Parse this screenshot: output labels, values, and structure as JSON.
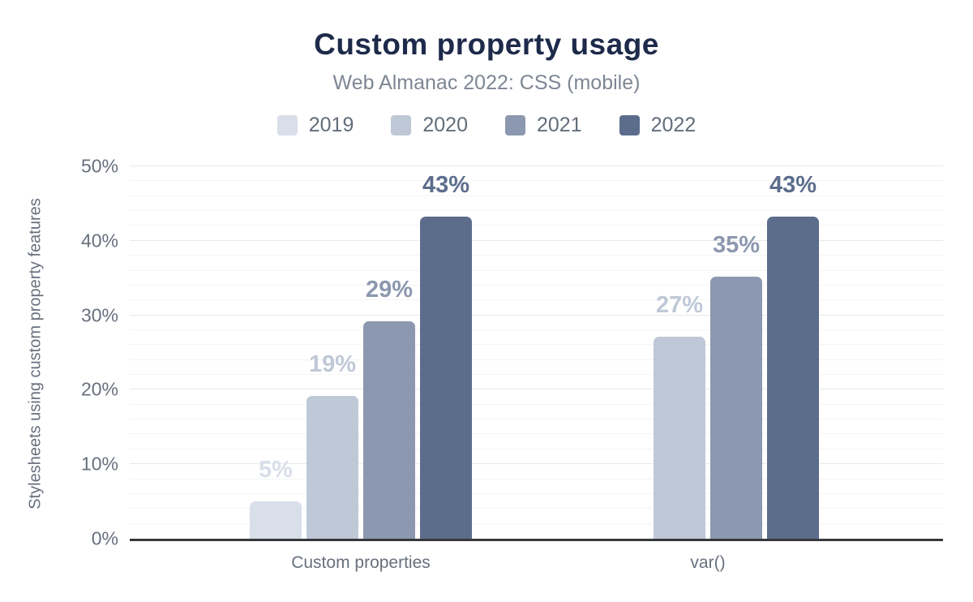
{
  "chart_data": {
    "type": "bar",
    "title": "Custom property usage",
    "subtitle": "Web Almanac 2022: CSS (mobile)",
    "categories": [
      "Custom properties",
      "var()"
    ],
    "series": [
      {
        "name": "2019",
        "color": "#d9dfe9",
        "values": [
          5,
          null
        ]
      },
      {
        "name": "2020",
        "color": "#bfc8d6",
        "values": [
          19,
          27
        ]
      },
      {
        "name": "2021",
        "color": "#8c98af",
        "values": [
          29,
          35
        ]
      },
      {
        "name": "2022",
        "color": "#5c6d8c",
        "values": [
          43,
          43
        ]
      }
    ],
    "data_labels": [
      "5%",
      "19%",
      "29%",
      "43%",
      "27%",
      "35%",
      "43%"
    ],
    "ylabel": "Stylesheets using custom property features",
    "xlabel": "",
    "ylim": [
      0,
      50
    ],
    "yticks": [
      0,
      10,
      20,
      30,
      40,
      50
    ],
    "ytick_labels": [
      "0%",
      "10%",
      "20%",
      "30%",
      "40%",
      "50%"
    ],
    "grid": {
      "orientation": "horizontal",
      "minor_step_pct": 2,
      "major_step_pct": 10
    },
    "legend_position": "top",
    "colors": {
      "title": "#1e2a4a",
      "subtitle": "#7e8694",
      "axis_text": "#68707e",
      "legend_text": "#636d7b",
      "axis_line": "#37383b",
      "gridline_minor": "#f4f4f5",
      "gridline_major": "#e8e9eb",
      "background": "#ffffff"
    }
  }
}
